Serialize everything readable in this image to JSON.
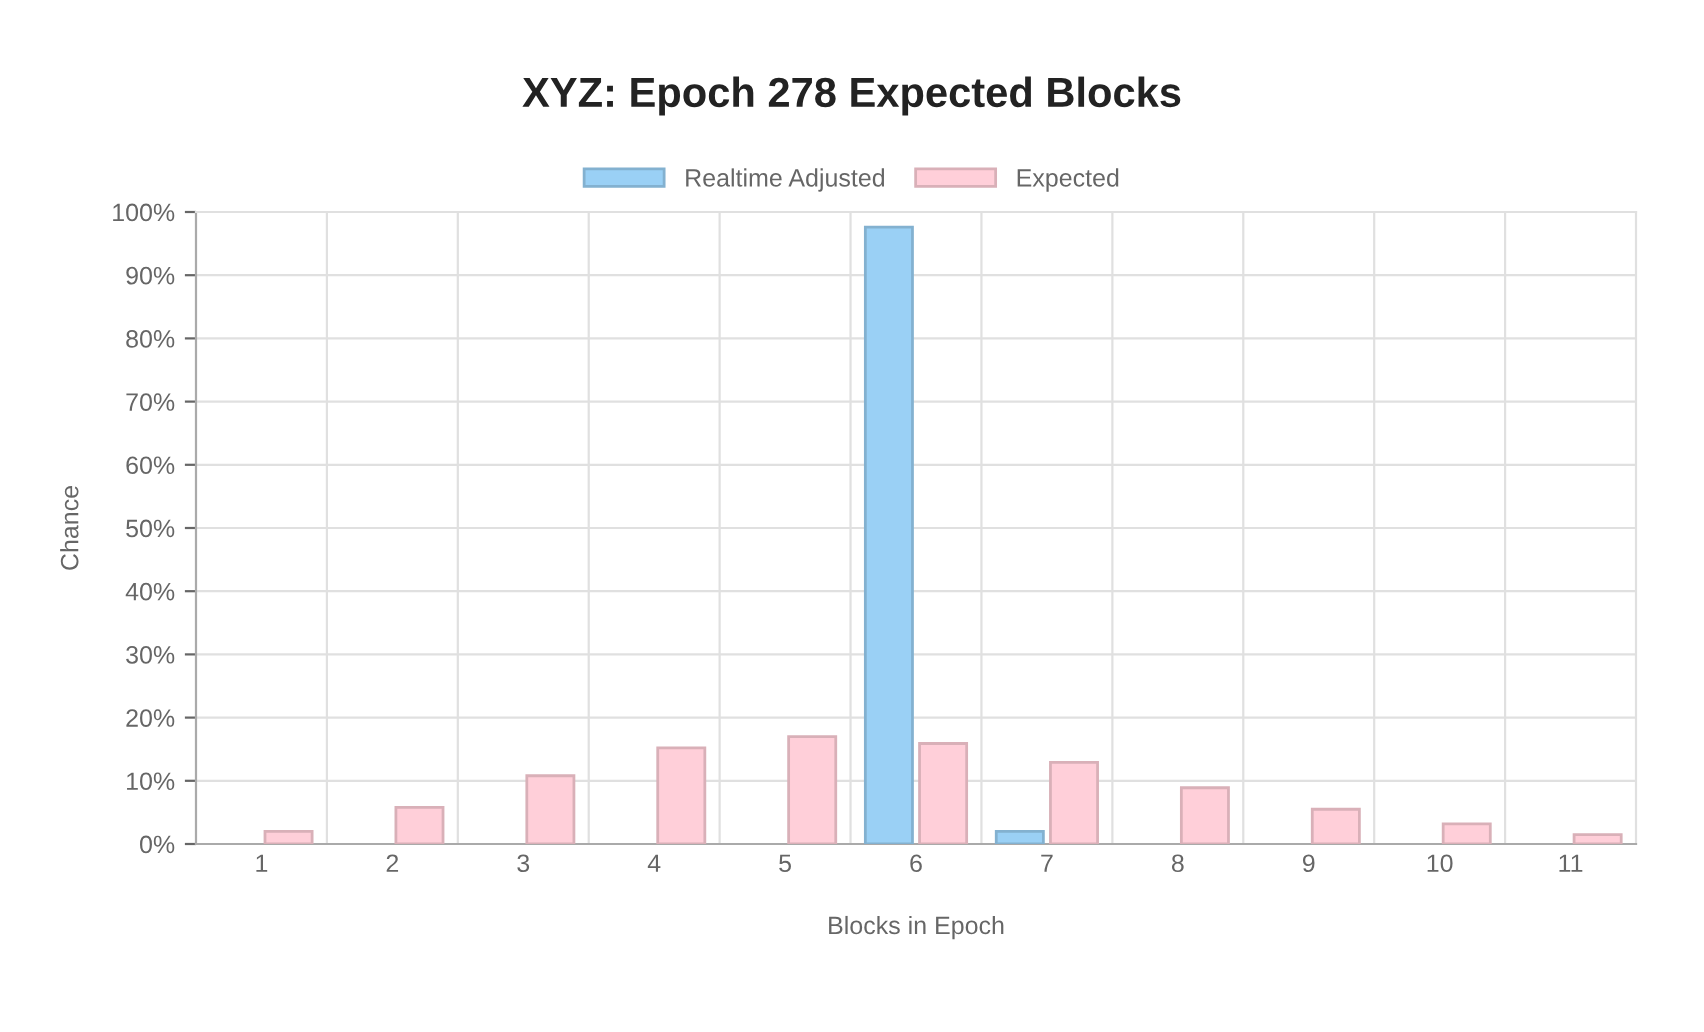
{
  "chart_data": {
    "type": "bar",
    "title": "XYZ: Epoch 278 Expected Blocks",
    "xlabel": "Blocks in Epoch",
    "ylabel": "Chance",
    "categories": [
      "1",
      "2",
      "3",
      "4",
      "5",
      "6",
      "7",
      "8",
      "9",
      "10",
      "11"
    ],
    "series": [
      {
        "name": "Realtime Adjusted",
        "color": "#9ad0f5",
        "values": [
          0,
          0,
          0,
          0,
          0,
          97.6,
          2.0,
          0,
          0,
          0,
          0
        ]
      },
      {
        "name": "Expected",
        "color": "#ffcfd9",
        "values": [
          2.0,
          5.8,
          10.8,
          15.2,
          17.0,
          15.9,
          12.9,
          8.9,
          5.5,
          3.2,
          1.5
        ]
      }
    ],
    "ylim": [
      0,
      100
    ],
    "yticks": [
      {
        "value": 0,
        "label": "0%"
      },
      {
        "value": 10,
        "label": "10%"
      },
      {
        "value": 20,
        "label": "20%"
      },
      {
        "value": 30,
        "label": "30%"
      },
      {
        "value": 40,
        "label": "40%"
      },
      {
        "value": 50,
        "label": "50%"
      },
      {
        "value": 60,
        "label": "60%"
      },
      {
        "value": 70,
        "label": "70%"
      },
      {
        "value": 80,
        "label": "80%"
      },
      {
        "value": 90,
        "label": "90%"
      },
      {
        "value": 100,
        "label": "100%"
      }
    ],
    "grid": true,
    "legend": "top"
  }
}
